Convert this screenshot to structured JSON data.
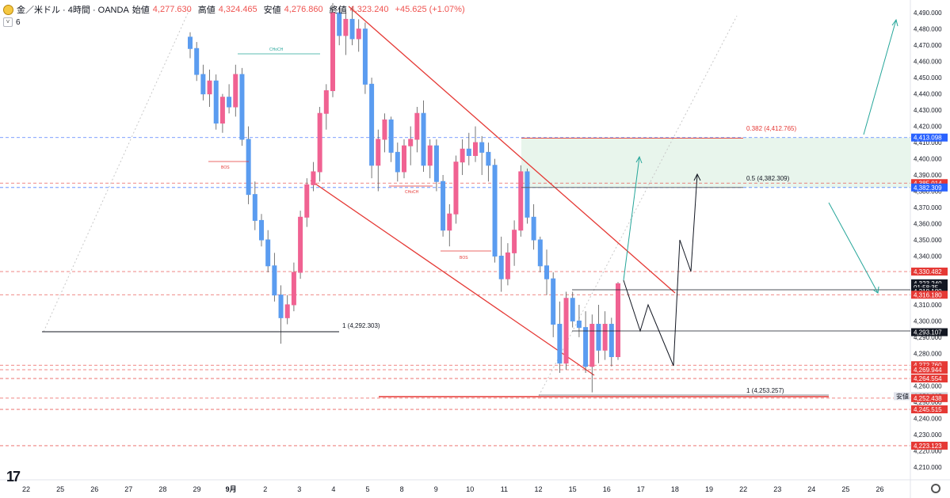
{
  "header": {
    "symbol": "金／米ドル · 4時間 · OANDA",
    "open_label": "始値",
    "open": "4,277.630",
    "high_label": "高値",
    "high": "4,324.465",
    "low_label": "安値",
    "low": "4,276.860",
    "close_label": "終値",
    "close": "4,323.240",
    "change": "+45.625 (+1.07%)",
    "indicator_count": "6"
  },
  "colors": {
    "up": "#f06292",
    "down": "#5b9cf0",
    "red": "#e53935",
    "teal": "#26a69a",
    "zone": "#e6f4ea"
  },
  "chart_data": {
    "type": "candlestick",
    "x_ticks": [
      "22",
      "25",
      "26",
      "27",
      "28",
      "29",
      "9月",
      "2",
      "3",
      "4",
      "5",
      "8",
      "9",
      "10",
      "11",
      "12",
      "15",
      "16",
      "17",
      "18",
      "19",
      "22",
      "23",
      "24",
      "25",
      "26"
    ],
    "y_ticks": [
      "4,490.000",
      "4,480.000",
      "4,470.000",
      "4,460.000",
      "4,450.000",
      "4,440.000",
      "4,430.000",
      "4,420.000",
      "4,410.000",
      "4,400.000",
      "4,390.000",
      "4,380.000",
      "4,370.000",
      "4,360.000",
      "4,350.000",
      "4,340.000",
      "4,330.000",
      "4,320.000",
      "4,310.000",
      "4,300.000",
      "4,290.000",
      "4,280.000",
      "4,270.000",
      "4,260.000",
      "4,250.000",
      "4,240.000",
      "4,230.000",
      "4,220.000",
      "4,210.000"
    ],
    "ylim": [
      4206,
      4494
    ],
    "price_labels": [
      {
        "text": "4,413.098",
        "kind": "blue",
        "value": 4413.098
      },
      {
        "text": "4,385.014",
        "kind": "red",
        "value": 4385.014
      },
      {
        "text": "4,382.309",
        "kind": "blue",
        "value": 4382.309
      },
      {
        "text": "4,330.482",
        "kind": "red",
        "value": 4330.482
      },
      {
        "text": "4,323.240",
        "kind": "dark",
        "value": 4323.24
      },
      {
        "text": "01:58:35",
        "kind": "dark",
        "value": 4320.7
      },
      {
        "text": "4,318.180",
        "kind": "dark",
        "value": 4318.18
      },
      {
        "text": "4,316.180",
        "kind": "red",
        "value": 4316.18
      },
      {
        "text": "4,293.107",
        "kind": "dark",
        "value": 4293.107
      },
      {
        "text": "4,272.760",
        "kind": "red",
        "value": 4272.76
      },
      {
        "text": "4,269.944",
        "kind": "red",
        "value": 4269.944
      },
      {
        "text": "4,264.554",
        "kind": "red",
        "value": 4264.554
      },
      {
        "text": "4,253.635",
        "kind": "gray",
        "value": 4253.635
      },
      {
        "text": "4,252.438",
        "kind": "red",
        "value": 4252.438
      },
      {
        "text": "4,245.515",
        "kind": "red",
        "value": 4245.515
      },
      {
        "text": "4,223.123",
        "kind": "red",
        "value": 4223.123
      }
    ],
    "low_tag": "安値",
    "annotations": {
      "fib_0382": "0.382 (4,412.765)",
      "fib_05": "0.5 (4,382.309)",
      "level_left": "1 (4,292.303)",
      "level_right": "1 (4,253.257)",
      "choch_1": "CHoCH",
      "choch_2": "CHoCH",
      "bos_1": "BOS",
      "bos_2": "BOS"
    },
    "candles": [
      [
        4475,
        4478,
        4462,
        4468
      ],
      [
        4468,
        4472,
        4448,
        4452
      ],
      [
        4452,
        4458,
        4436,
        4440
      ],
      [
        4440,
        4455,
        4432,
        4448
      ],
      [
        4448,
        4452,
        4418,
        4422
      ],
      [
        4422,
        4440,
        4416,
        4438
      ],
      [
        4438,
        4446,
        4428,
        4432
      ],
      [
        4432,
        4458,
        4426,
        4452
      ],
      [
        4452,
        4456,
        4408,
        4412
      ],
      [
        4412,
        4420,
        4372,
        4378
      ],
      [
        4378,
        4386,
        4356,
        4362
      ],
      [
        4362,
        4366,
        4346,
        4350
      ],
      [
        4350,
        4356,
        4330,
        4334
      ],
      [
        4334,
        4342,
        4312,
        4316
      ],
      [
        4316,
        4322,
        4286,
        4302
      ],
      [
        4302,
        4316,
        4298,
        4310
      ],
      [
        4310,
        4336,
        4306,
        4330
      ],
      [
        4330,
        4368,
        4326,
        4364
      ],
      [
        4364,
        4388,
        4358,
        4384
      ],
      [
        4384,
        4398,
        4380,
        4392
      ],
      [
        4392,
        4432,
        4386,
        4428
      ],
      [
        4428,
        4446,
        4418,
        4442
      ],
      [
        4442,
        4496,
        4438,
        4490
      ],
      [
        4490,
        4494,
        4470,
        4476
      ],
      [
        4476,
        4492,
        4464,
        4486
      ],
      [
        4486,
        4494,
        4470,
        4474
      ],
      [
        4474,
        4486,
        4466,
        4480
      ],
      [
        4480,
        4484,
        4440,
        4446
      ],
      [
        4446,
        4450,
        4388,
        4396
      ],
      [
        4396,
        4418,
        4380,
        4412
      ],
      [
        4412,
        4428,
        4404,
        4424
      ],
      [
        4424,
        4426,
        4398,
        4404
      ],
      [
        4404,
        4410,
        4386,
        4392
      ],
      [
        4392,
        4412,
        4388,
        4408
      ],
      [
        4408,
        4420,
        4396,
        4412
      ],
      [
        4412,
        4432,
        4404,
        4428
      ],
      [
        4428,
        4436,
        4392,
        4396
      ],
      [
        4396,
        4412,
        4388,
        4408
      ],
      [
        4408,
        4412,
        4380,
        4386
      ],
      [
        4386,
        4390,
        4352,
        4356
      ],
      [
        4356,
        4372,
        4346,
        4366
      ],
      [
        4366,
        4402,
        4360,
        4398
      ],
      [
        4398,
        4412,
        4390,
        4406
      ],
      [
        4406,
        4416,
        4396,
        4402
      ],
      [
        4402,
        4420,
        4398,
        4410
      ],
      [
        4410,
        4414,
        4390,
        4404
      ],
      [
        4404,
        4410,
        4386,
        4396
      ],
      [
        4396,
        4400,
        4336,
        4340
      ],
      [
        4340,
        4352,
        4318,
        4326
      ],
      [
        4326,
        4348,
        4322,
        4342
      ],
      [
        4342,
        4362,
        4334,
        4356
      ],
      [
        4356,
        4396,
        4352,
        4392
      ],
      [
        4392,
        4394,
        4360,
        4364
      ],
      [
        4364,
        4372,
        4344,
        4350
      ],
      [
        4350,
        4352,
        4330,
        4334
      ],
      [
        4334,
        4344,
        4316,
        4326
      ],
      [
        4326,
        4330,
        4290,
        4298
      ],
      [
        4298,
        4312,
        4268,
        4274
      ],
      [
        4274,
        4318,
        4270,
        4314
      ],
      [
        4314,
        4318,
        4296,
        4300
      ],
      [
        4300,
        4310,
        4290,
        4296
      ],
      [
        4296,
        4306,
        4268,
        4272
      ],
      [
        4272,
        4304,
        4256,
        4298
      ],
      [
        4298,
        4310,
        4274,
        4282
      ],
      [
        4282,
        4306,
        4276,
        4298
      ],
      [
        4298,
        4302,
        4272,
        4278
      ],
      [
        4278,
        4324,
        4276,
        4323
      ]
    ]
  }
}
